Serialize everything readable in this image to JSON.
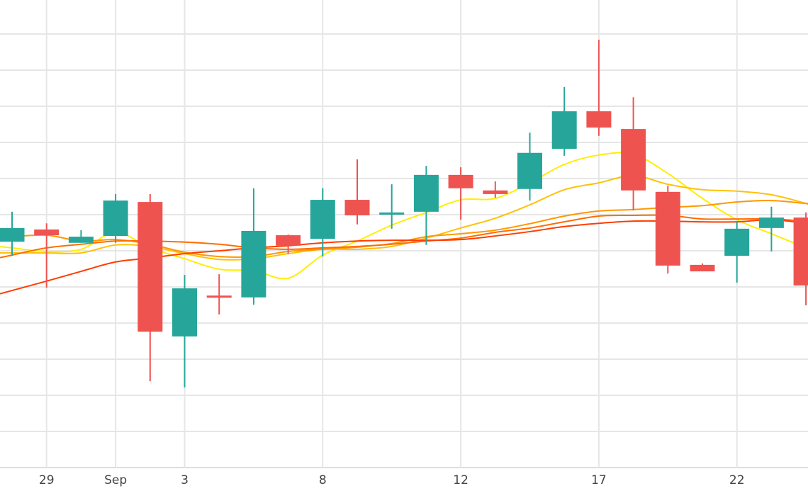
{
  "chart_data": {
    "type": "candlestick",
    "title": "",
    "xlabel": "",
    "ylabel": "",
    "ylim": [
      0,
      12.94
    ],
    "grid": true,
    "x_tick_labels": [
      {
        "index": 1,
        "label": "29"
      },
      {
        "index": 3,
        "label": "Sep"
      },
      {
        "index": 5,
        "label": "3"
      },
      {
        "index": 9,
        "label": "8"
      },
      {
        "index": 13,
        "label": "12"
      },
      {
        "index": 17,
        "label": "17"
      },
      {
        "index": 21,
        "label": "22"
      }
    ],
    "y_gridlines": [
      1,
      2,
      3,
      4,
      5,
      6,
      7,
      8,
      9,
      10,
      11,
      12
    ],
    "colors": {
      "up": "#26a69a",
      "down": "#ef5350",
      "grid": "#e6e6e6",
      "axis": "#dddddd"
    },
    "candles": [
      {
        "o": 6.25,
        "h": 7.08,
        "l": 5.86,
        "c": 6.63
      },
      {
        "o": 6.59,
        "h": 6.76,
        "l": 4.98,
        "c": 6.43
      },
      {
        "o": 6.22,
        "h": 6.57,
        "l": 6.22,
        "c": 6.39
      },
      {
        "o": 6.41,
        "h": 7.57,
        "l": 6.22,
        "c": 7.39
      },
      {
        "o": 7.35,
        "h": 7.57,
        "l": 2.39,
        "c": 3.76
      },
      {
        "o": 3.63,
        "h": 5.33,
        "l": 2.22,
        "c": 4.96
      },
      {
        "o": 4.76,
        "h": 5.35,
        "l": 4.24,
        "c": 4.73
      },
      {
        "o": 4.71,
        "h": 7.73,
        "l": 4.51,
        "c": 6.55
      },
      {
        "o": 6.43,
        "h": 6.45,
        "l": 5.92,
        "c": 6.14
      },
      {
        "o": 6.33,
        "h": 7.73,
        "l": 5.84,
        "c": 7.41
      },
      {
        "o": 7.41,
        "h": 8.53,
        "l": 6.73,
        "c": 6.98
      },
      {
        "o": 7.0,
        "h": 7.84,
        "l": 6.61,
        "c": 7.06
      },
      {
        "o": 7.08,
        "h": 8.35,
        "l": 6.16,
        "c": 8.1
      },
      {
        "o": 8.1,
        "h": 8.31,
        "l": 6.86,
        "c": 7.73
      },
      {
        "o": 7.67,
        "h": 7.92,
        "l": 7.47,
        "c": 7.57
      },
      {
        "o": 7.71,
        "h": 9.27,
        "l": 7.39,
        "c": 8.71
      },
      {
        "o": 8.82,
        "h": 10.53,
        "l": 8.63,
        "c": 9.86
      },
      {
        "o": 9.86,
        "h": 11.84,
        "l": 9.18,
        "c": 9.41
      },
      {
        "o": 9.37,
        "h": 10.25,
        "l": 7.12,
        "c": 7.67
      },
      {
        "o": 7.63,
        "h": 7.8,
        "l": 5.37,
        "c": 5.59
      },
      {
        "o": 5.61,
        "h": 5.65,
        "l": 5.43,
        "c": 5.43
      },
      {
        "o": 5.86,
        "h": 6.82,
        "l": 5.12,
        "c": 6.61
      },
      {
        "o": 6.63,
        "h": 7.22,
        "l": 5.98,
        "c": 6.92
      },
      {
        "o": 6.92,
        "h": 7.06,
        "l": 4.49,
        "c": 5.04
      }
    ],
    "series": [
      {
        "name": "ma-yellow",
        "color": "#ffee00",
        "values": [
          6.08,
          5.98,
          6.04,
          6.51,
          6.08,
          5.78,
          5.49,
          5.45,
          5.24,
          5.88,
          6.27,
          6.71,
          7.06,
          7.41,
          7.45,
          7.88,
          8.39,
          8.65,
          8.67,
          8.14,
          7.45,
          6.86,
          6.47,
          6.08
        ]
      },
      {
        "name": "ma-gold",
        "color": "#ffc107",
        "values": [
          5.94,
          5.94,
          5.94,
          6.16,
          6.12,
          5.92,
          5.76,
          5.78,
          5.92,
          6.04,
          6.04,
          6.12,
          6.35,
          6.63,
          6.9,
          7.27,
          7.69,
          7.88,
          8.08,
          7.84,
          7.69,
          7.65,
          7.55,
          7.31
        ]
      },
      {
        "name": "ma-orange",
        "color": "#ff9800",
        "values": [
          6.39,
          6.43,
          6.27,
          6.31,
          6.18,
          5.96,
          5.84,
          5.84,
          5.98,
          6.04,
          6.1,
          6.2,
          6.39,
          6.47,
          6.57,
          6.75,
          6.96,
          7.1,
          7.14,
          7.2,
          7.25,
          7.35,
          7.39,
          7.31
        ]
      },
      {
        "name": "ma-dark-orange",
        "color": "#ff6d00",
        "values": [
          5.88,
          6.08,
          6.18,
          6.27,
          6.27,
          6.24,
          6.18,
          6.08,
          6.04,
          6.08,
          6.12,
          6.18,
          6.27,
          6.35,
          6.51,
          6.63,
          6.8,
          6.96,
          6.98,
          6.98,
          6.88,
          6.88,
          6.88,
          6.82
        ]
      },
      {
        "name": "ma-red",
        "color": "#ff3d00",
        "values": [
          4.9,
          5.16,
          5.43,
          5.69,
          5.8,
          5.92,
          6.0,
          6.08,
          6.14,
          6.22,
          6.27,
          6.29,
          6.29,
          6.31,
          6.41,
          6.53,
          6.67,
          6.76,
          6.82,
          6.82,
          6.8,
          6.8,
          6.86,
          6.76
        ]
      }
    ]
  }
}
